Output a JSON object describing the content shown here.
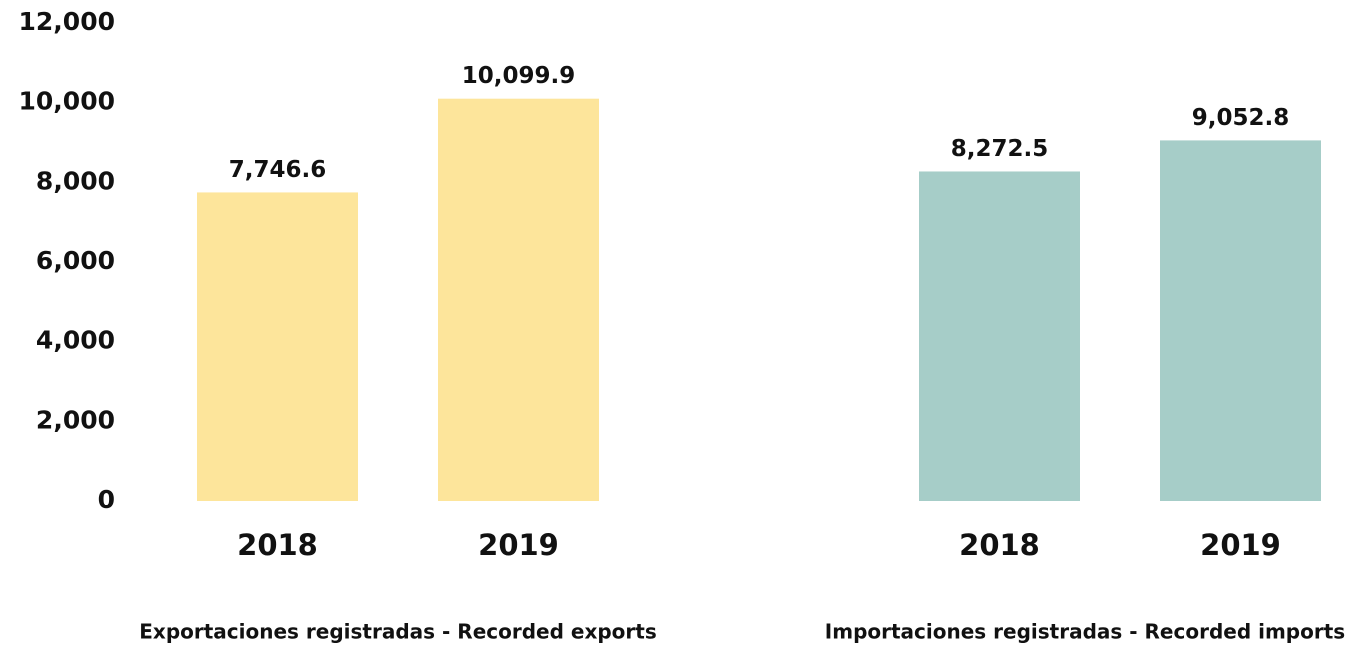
{
  "chart_data": {
    "type": "bar",
    "ylim": [
      0,
      12000
    ],
    "yticks": [
      0,
      {
        "value": 2000,
        "label": "2,000"
      },
      {
        "value": 4000,
        "label": "4,000"
      },
      {
        "value": 6000,
        "label": "6,000"
      },
      {
        "value": 8000,
        "label": "8,000"
      },
      {
        "value": 10000,
        "label": "10,000"
      },
      {
        "value": 12000,
        "label": "12,000"
      }
    ],
    "grid": false,
    "groups": [
      {
        "name": "Exportaciones registradas - Recorded exports",
        "color": "#fde59b",
        "categories": [
          "2018",
          "2019"
        ],
        "values": [
          7746.6,
          10099.9
        ],
        "value_labels": [
          "7,746.6",
          "10,099.9"
        ]
      },
      {
        "name": "Importaciones registradas - Recorded imports",
        "color": "#a6cdc8",
        "categories": [
          "2018",
          "2019"
        ],
        "values": [
          8272.5,
          9052.8
        ],
        "value_labels": [
          "8,272.5",
          "9,052.8"
        ]
      }
    ]
  }
}
